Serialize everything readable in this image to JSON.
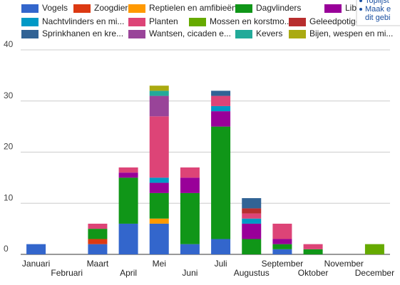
{
  "chart_data": {
    "type": "stacked-bar",
    "categories": [
      "Januari",
      "Februari",
      "Maart",
      "April",
      "Mei",
      "Juni",
      "Juli",
      "Augustus",
      "September",
      "Oktober",
      "November",
      "December"
    ],
    "ylim": [
      0,
      40
    ],
    "yticks": [
      0,
      10,
      20,
      30,
      40
    ],
    "grid": true,
    "series": [
      {
        "name": "Vogels",
        "color": "#3366cc",
        "values": [
          2,
          0,
          2,
          6,
          6,
          2,
          3,
          0,
          1,
          0,
          0,
          0
        ]
      },
      {
        "name": "Zoogdieren",
        "color": "#dc3912",
        "values": [
          0,
          0,
          1,
          0,
          0,
          0,
          0,
          0,
          0,
          0,
          0,
          0
        ]
      },
      {
        "name": "Reptielen en amfibieën",
        "color": "#ff9900",
        "values": [
          0,
          0,
          0,
          0,
          1,
          0,
          0,
          0,
          0,
          0,
          0,
          0
        ]
      },
      {
        "name": "Dagvlinders",
        "color": "#109618",
        "values": [
          0,
          0,
          2,
          9,
          5,
          10,
          22,
          3,
          1,
          1,
          0,
          0
        ]
      },
      {
        "name": "Lib",
        "color": "#990099",
        "values": [
          0,
          0,
          0,
          1,
          2,
          3,
          3,
          3,
          1,
          0,
          0,
          0
        ]
      },
      {
        "name": "Nachtvlinders en mi...",
        "color": "#0099c6",
        "values": [
          0,
          0,
          0,
          0,
          1,
          0,
          1,
          1,
          0,
          0,
          0,
          0
        ]
      },
      {
        "name": "Planten",
        "color": "#dd4477",
        "values": [
          0,
          0,
          1,
          1,
          12,
          2,
          2,
          1,
          3,
          1,
          0,
          0
        ]
      },
      {
        "name": "Mossen en korstmo...",
        "color": "#66aa00",
        "values": [
          0,
          0,
          0,
          0,
          0,
          0,
          0,
          0,
          0,
          0,
          0,
          2
        ]
      },
      {
        "name": "Geleedpotige",
        "color": "#b82e2e",
        "values": [
          0,
          0,
          0,
          0,
          0,
          0,
          0,
          1,
          0,
          0,
          0,
          0
        ]
      },
      {
        "name": "Sprinkhanen en kre...",
        "color": "#316395",
        "values": [
          0,
          0,
          0,
          0,
          0,
          0,
          1,
          2,
          0,
          0,
          0,
          0
        ]
      },
      {
        "name": "Wantsen, cicaden e...",
        "color": "#994499",
        "values": [
          0,
          0,
          0,
          0,
          4,
          0,
          0,
          0,
          0,
          0,
          0,
          0
        ]
      },
      {
        "name": "Kevers",
        "color": "#22aa99",
        "values": [
          0,
          0,
          0,
          0,
          1,
          0,
          0,
          0,
          0,
          0,
          0,
          0
        ]
      },
      {
        "name": "Bijen, wespen en mi...",
        "color": "#aaaa11",
        "values": [
          0,
          0,
          0,
          0,
          1,
          0,
          0,
          0,
          0,
          0,
          0,
          0
        ]
      }
    ]
  },
  "popup": {
    "lines": [
      "Toplijst",
      "Maak e",
      "dit gebi"
    ]
  }
}
